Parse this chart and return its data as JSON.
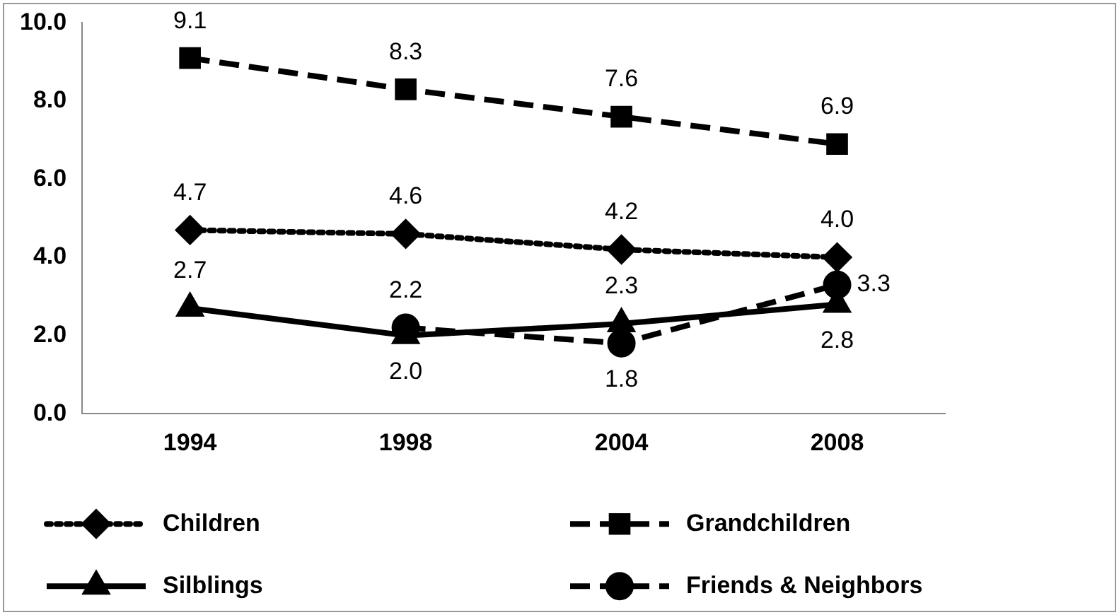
{
  "chart_data": {
    "type": "line",
    "categories": [
      "1994",
      "1998",
      "2004",
      "2008"
    ],
    "series": [
      {
        "name": "Children",
        "color": "#000000",
        "marker": "diamond",
        "line_style": "dotted",
        "values": [
          4.7,
          4.6,
          4.2,
          4.0
        ],
        "value_labels": [
          "4.7",
          "4.6",
          "4.2",
          "4.0"
        ]
      },
      {
        "name": "Grandchildren",
        "color": "#000000",
        "marker": "square",
        "line_style": "dashed",
        "values": [
          9.1,
          8.3,
          7.6,
          6.9
        ],
        "value_labels": [
          "9.1",
          "8.3",
          "7.6",
          "6.9"
        ]
      },
      {
        "name": "Silblings",
        "color": "#000000",
        "marker": "triangle",
        "line_style": "solid",
        "values": [
          2.7,
          2.0,
          2.3,
          2.8
        ],
        "value_labels": [
          "2.7",
          "2.0",
          "2.3",
          "2.8"
        ]
      },
      {
        "name": "Friends & Neighbors",
        "color": "#000000",
        "marker": "circle",
        "line_style": "dashed",
        "values": [
          null,
          2.2,
          1.8,
          3.3
        ],
        "value_labels": [
          null,
          "2.2",
          "1.8",
          "3.3"
        ]
      }
    ],
    "ylim": [
      0,
      10
    ],
    "yticks": [
      {
        "value": 0,
        "label": "0.0"
      },
      {
        "value": 2,
        "label": "2.0"
      },
      {
        "value": 4,
        "label": "4.0"
      },
      {
        "value": 6,
        "label": "6.0"
      },
      {
        "value": 8,
        "label": "8.0"
      },
      {
        "value": 10,
        "label": "10.0"
      }
    ],
    "grid": false,
    "legend": "bottom"
  }
}
